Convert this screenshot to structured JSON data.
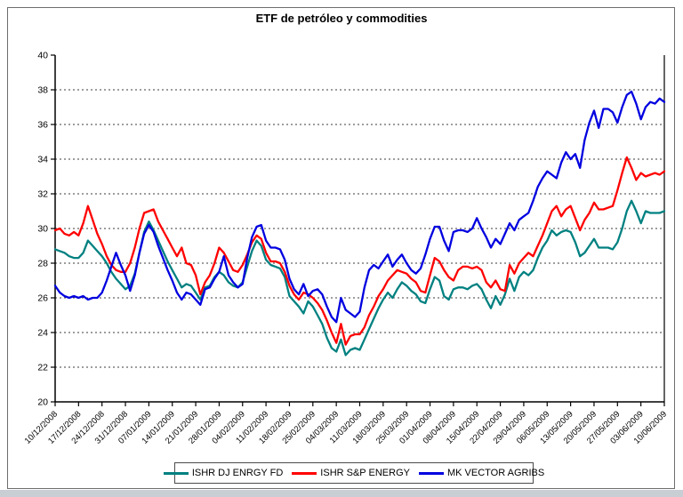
{
  "window": {
    "background": "#ffffff",
    "frame_border_color": "#6e6e6e",
    "bottom_strip_color": "#c9ced5"
  },
  "chart_data": {
    "type": "line",
    "title": "ETF de petróleo y commodities",
    "grid": "horizontal dotted lines at each y tick",
    "legend_position": "bottom",
    "axis_color": "#000000",
    "gridline_color": "#3c3c3c",
    "y_axis": {
      "min": 20,
      "max": 40,
      "step": 2,
      "tick_labels": [
        "20",
        "22",
        "24",
        "26",
        "28",
        "30",
        "32",
        "34",
        "36",
        "38",
        "40"
      ]
    },
    "x_axis": {
      "tick_labels": [
        "10/12/2008",
        "17/12/2008",
        "24/12/2008",
        "31/12/2008",
        "07/01/2009",
        "14/01/2009",
        "21/01/2009",
        "28/01/2009",
        "04/02/2009",
        "11/02/2009",
        "18/02/2009",
        "25/02/2009",
        "04/03/2009",
        "11/03/2009",
        "18/03/2009",
        "25/03/2009",
        "01/04/2009",
        "08/04/2009",
        "15/04/2009",
        "22/04/2009",
        "29/04/2009",
        "06/05/2009",
        "13/05/2009",
        "20/05/2009",
        "27/05/2009",
        "03/06/2009",
        "10/06/2009"
      ]
    },
    "series": [
      {
        "name": "ISHR DJ ENRGY FD",
        "color": "#008080",
        "values": [
          28.8,
          28.7,
          28.6,
          28.4,
          28.3,
          28.3,
          28.6,
          29.3,
          29.0,
          28.7,
          28.4,
          28.0,
          27.5,
          27.1,
          26.8,
          26.5,
          26.7,
          27.4,
          28.6,
          29.8,
          30.4,
          29.9,
          29.3,
          28.7,
          28.1,
          27.6,
          27.1,
          26.6,
          26.8,
          26.7,
          26.3,
          25.9,
          26.6,
          26.7,
          27.2,
          27.5,
          27.3,
          26.9,
          26.7,
          26.6,
          26.9,
          27.8,
          28.7,
          29.3,
          29.0,
          28.2,
          27.9,
          27.8,
          27.7,
          27.2,
          26.1,
          25.8,
          25.5,
          25.1,
          25.8,
          25.5,
          25.0,
          24.5,
          23.7,
          23.1,
          22.9,
          23.6,
          22.7,
          23.0,
          23.1,
          23.0,
          23.6,
          24.2,
          24.8,
          25.4,
          25.9,
          26.3,
          26.0,
          26.5,
          26.9,
          26.7,
          26.4,
          26.2,
          25.8,
          25.7,
          26.5,
          27.2,
          27.0,
          26.1,
          25.9,
          26.5,
          26.6,
          26.6,
          26.5,
          26.7,
          26.8,
          26.5,
          25.9,
          25.4,
          26.1,
          25.6,
          26.2,
          27.1,
          26.4,
          27.2,
          27.5,
          27.3,
          27.6,
          28.3,
          28.9,
          29.3,
          29.9,
          29.6,
          29.8,
          29.9,
          29.8,
          29.2,
          28.4,
          28.6,
          29.0,
          29.4,
          28.9,
          28.9,
          28.9,
          28.8,
          29.2,
          30.0,
          31.0,
          31.6,
          31.0,
          30.3,
          31.0,
          30.9,
          30.9,
          30.9,
          31.0
        ]
      },
      {
        "name": "ISHR S&P ENERGY",
        "color": "#ff0000",
        "values": [
          29.9,
          30.0,
          29.7,
          29.6,
          29.8,
          29.6,
          30.3,
          31.3,
          30.5,
          29.7,
          29.1,
          28.4,
          27.9,
          27.6,
          27.5,
          27.5,
          28.0,
          28.9,
          30.0,
          30.9,
          31.0,
          31.1,
          30.4,
          29.9,
          29.4,
          28.9,
          28.4,
          28.9,
          28.0,
          27.9,
          27.3,
          26.2,
          26.9,
          27.3,
          28.0,
          28.9,
          28.6,
          28.1,
          27.6,
          27.5,
          27.9,
          28.5,
          29.2,
          29.6,
          29.4,
          28.6,
          28.1,
          28.1,
          28.0,
          27.5,
          26.7,
          26.2,
          25.9,
          26.3,
          26.2,
          26.0,
          25.7,
          25.3,
          24.7,
          24.0,
          23.4,
          24.5,
          23.3,
          23.8,
          23.9,
          23.9,
          24.3,
          25.0,
          25.5,
          26.1,
          26.5,
          27.0,
          27.3,
          27.6,
          27.5,
          27.4,
          27.1,
          26.9,
          26.4,
          26.3,
          27.3,
          28.3,
          28.1,
          27.6,
          27.2,
          27.0,
          27.6,
          27.8,
          27.8,
          27.7,
          27.8,
          27.6,
          26.9,
          26.6,
          27.0,
          26.5,
          26.4,
          27.9,
          27.4,
          28.0,
          28.3,
          28.6,
          28.4,
          29.0,
          29.6,
          30.3,
          31.0,
          31.3,
          30.7,
          31.1,
          31.3,
          30.6,
          29.9,
          30.5,
          30.9,
          31.5,
          31.1,
          31.1,
          31.2,
          31.3,
          32.2,
          33.2,
          34.1,
          33.5,
          32.8,
          33.2,
          33.0,
          33.1,
          33.2,
          33.1,
          33.3
        ]
      },
      {
        "name": "MK VECTOR AGRIBS",
        "color": "#0000e0",
        "values": [
          26.7,
          26.3,
          26.1,
          26.0,
          26.1,
          26.0,
          26.1,
          25.9,
          26.0,
          26.0,
          26.3,
          27.0,
          27.8,
          28.6,
          27.9,
          27.3,
          26.4,
          27.3,
          28.6,
          29.7,
          30.2,
          29.8,
          29.0,
          28.3,
          27.6,
          27.0,
          26.3,
          25.9,
          26.3,
          26.2,
          25.9,
          25.6,
          26.5,
          26.6,
          27.1,
          27.5,
          28.4,
          27.3,
          26.9,
          26.6,
          26.8,
          28.3,
          29.5,
          30.1,
          30.2,
          29.3,
          28.9,
          28.9,
          28.8,
          28.2,
          27.1,
          26.5,
          26.2,
          26.8,
          26.1,
          26.4,
          26.5,
          26.2,
          25.5,
          24.9,
          24.6,
          26.0,
          25.3,
          25.1,
          24.9,
          25.2,
          26.6,
          27.6,
          27.9,
          27.7,
          28.1,
          28.5,
          27.8,
          28.2,
          28.5,
          28.0,
          27.6,
          27.4,
          27.7,
          28.5,
          29.4,
          30.1,
          30.1,
          29.3,
          28.7,
          29.8,
          29.9,
          29.9,
          29.8,
          30.0,
          30.6,
          30.0,
          29.5,
          28.9,
          29.4,
          29.1,
          29.7,
          30.3,
          29.9,
          30.5,
          30.7,
          30.9,
          31.6,
          32.4,
          32.9,
          33.3,
          33.1,
          32.9,
          33.8,
          34.4,
          34.0,
          34.3,
          33.5,
          35.1,
          36.1,
          36.8,
          35.8,
          36.9,
          36.9,
          36.7,
          36.1,
          37.0,
          37.7,
          37.9,
          37.2,
          36.3,
          37.0,
          37.3,
          37.2,
          37.5,
          37.3
        ]
      }
    ]
  }
}
